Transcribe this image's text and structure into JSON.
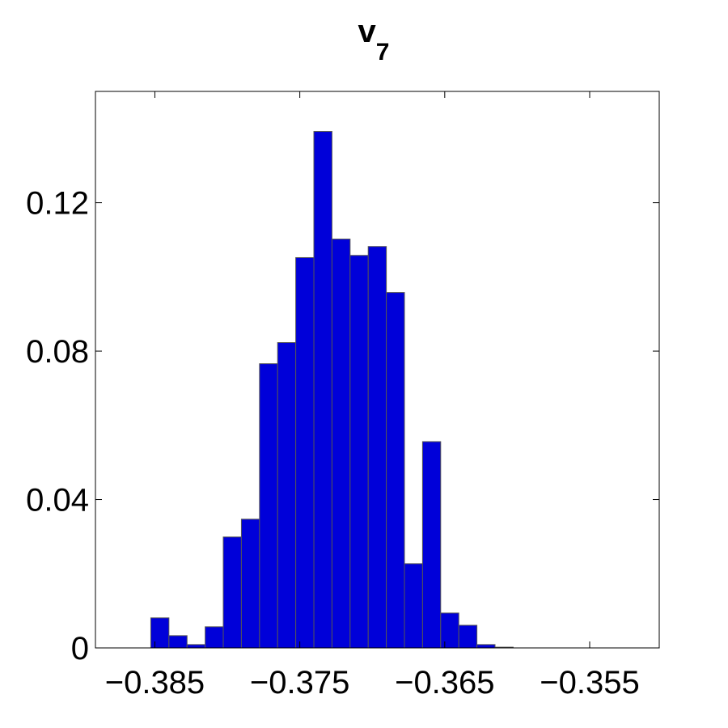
{
  "chart_data": {
    "type": "histogram",
    "title": "v",
    "title_subscript": "7",
    "bins": [
      -0.38528,
      -0.38403,
      -0.38278,
      -0.38153,
      -0.38028,
      -0.37903,
      -0.37778,
      -0.37653,
      -0.37528,
      -0.37403,
      -0.37278,
      -0.37153,
      -0.37028,
      -0.36903,
      -0.36778,
      -0.36653,
      -0.36528,
      -0.36403,
      -0.36278,
      -0.36153,
      -0.36028
    ],
    "values": [
      0.0081,
      0.0033,
      0.0009,
      0.0057,
      0.0299,
      0.0347,
      0.0766,
      0.0823,
      0.1052,
      0.1392,
      0.1102,
      0.1058,
      0.1082,
      0.0958,
      0.0227,
      0.0556,
      0.0094,
      0.0061,
      0.0009,
      0.0002
    ],
    "color": "#0000d9",
    "edge_color": "#555555",
    "xlim": [
      -0.3891,
      -0.3502
    ],
    "xticks": [
      {
        "value": -0.385,
        "label": "−0.385"
      },
      {
        "value": -0.375,
        "label": "−0.375"
      },
      {
        "value": -0.365,
        "label": "−0.365"
      },
      {
        "value": -0.355,
        "label": "−0.355"
      }
    ],
    "ylim": [
      0,
      0.15
    ],
    "yticks": [
      0,
      0.04,
      0.08,
      0.12
    ],
    "grid": false
  }
}
